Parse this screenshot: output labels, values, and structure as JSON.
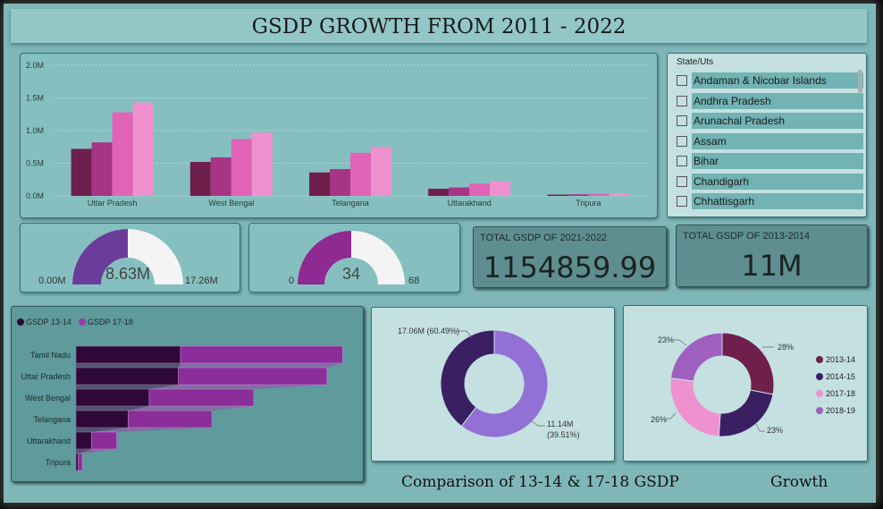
{
  "title": "GSDP GROWTH FROM  2011 - 2022",
  "colors": {
    "s1": "#6e1f4c",
    "s2": "#a63487",
    "s3": "#e063b7",
    "s4": "#ef91cf",
    "gauge1": "#6a3d9a",
    "gauge2": "#8e2a92",
    "navy": "#3a2063",
    "lavender": "#9370d6"
  },
  "chart_data": [
    {
      "type": "bar",
      "categories": [
        "Uttar Pradesh",
        "West Bengal",
        "Telangana",
        "Uttarakhand",
        "Tripura"
      ],
      "yticks": [
        "0.0M",
        "0.5M",
        "1.0M",
        "1.5M",
        "2.0M"
      ],
      "ylim": [
        0,
        2.0
      ],
      "series": [
        {
          "values": [
            0.72,
            0.52,
            0.36,
            0.11,
            0.02
          ]
        },
        {
          "values": [
            0.82,
            0.59,
            0.41,
            0.13,
            0.025
          ]
        },
        {
          "values": [
            1.28,
            0.87,
            0.66,
            0.19,
            0.035
          ]
        },
        {
          "values": [
            1.43,
            0.97,
            0.75,
            0.22,
            0.04
          ]
        }
      ]
    },
    {
      "type": "bar",
      "orientation": "horizontal",
      "legend": [
        "GSDP 13-14",
        "GSDP 17-18"
      ],
      "categories": [
        "Tamil Nadu",
        "Uttar Pradesh",
        "West Bengal",
        "Telangana",
        "Uttarakhand",
        "Tripura"
      ],
      "series": [
        {
          "name": "GSDP 13-14",
          "values": [
            1.0,
            0.98,
            0.7,
            0.5,
            0.15,
            0.02
          ]
        },
        {
          "name": "GSDP 17-18",
          "values": [
            1.55,
            1.42,
            1.0,
            0.8,
            0.24,
            0.04
          ]
        }
      ],
      "xlim": [
        0,
        2.65
      ]
    },
    {
      "type": "pie",
      "donut": true,
      "slices": [
        {
          "label": "17.06M (60.49%)",
          "value": 60.49
        },
        {
          "label": "11.14M (39.51%)",
          "label_line1": "11.14M",
          "label_line2": "(39.51%)",
          "value": 39.51
        }
      ]
    },
    {
      "type": "pie",
      "donut": true,
      "slices": [
        {
          "name": "2013-14",
          "label": "28%",
          "value": 28
        },
        {
          "name": "2014-15",
          "label": "23%",
          "value": 23
        },
        {
          "name": "2017-18",
          "label": "26%",
          "value": 26
        },
        {
          "name": "2018-19",
          "label": "23%",
          "value": 23
        }
      ]
    }
  ],
  "gauges": [
    {
      "min": "0.00M",
      "value": "8.63M",
      "max": "17.26M",
      "fraction": 0.5
    },
    {
      "min": "0",
      "value": "34",
      "max": "68",
      "fraction": 0.5
    }
  ],
  "cards": [
    {
      "label": "TOTAL GSDP OF 2021-2022",
      "value": "1154859.99"
    },
    {
      "label": "TOTAL GSDP OF 2013-2014",
      "value": "11M"
    }
  ],
  "slicer": {
    "title": "State/Uts",
    "items": [
      "Andaman & Nicobar Islands",
      "Andhra Pradesh",
      "Arunachal Pradesh",
      "Assam",
      "Bihar",
      "Chandigarh",
      "Chhattisgarh"
    ]
  },
  "captions": {
    "comparison": "Comparison of 13-14 & 17-18 GSDP",
    "growth": "Growth"
  }
}
